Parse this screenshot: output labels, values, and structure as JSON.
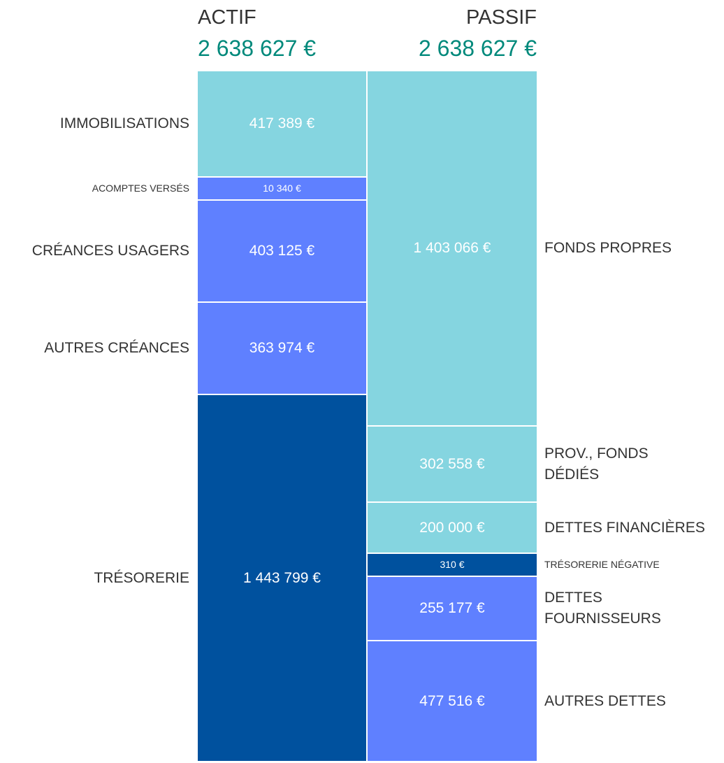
{
  "chart_data": {
    "type": "balance",
    "columns": [
      {
        "name": "ACTIF",
        "total": 2638627,
        "total_label": "2 638 627 €",
        "segments": [
          {
            "name": "IMMOBILISATIONS",
            "value": 417389,
            "value_label": "417 389 €",
            "color": "#85d5e0"
          },
          {
            "name": "ACOMPTES VERSÉS",
            "value": 10340,
            "value_label": "10 340 €",
            "color": "#5f80ff"
          },
          {
            "name": "CRÉANCES USAGERS",
            "value": 403125,
            "value_label": "403 125 €",
            "color": "#5f80ff"
          },
          {
            "name": "AUTRES CRÉANCES",
            "value": 363974,
            "value_label": "363 974 €",
            "color": "#5f80ff"
          },
          {
            "name": "TRÉSORERIE",
            "value": 1443799,
            "value_label": "1 443 799 €",
            "color": "#00519e"
          }
        ]
      },
      {
        "name": "PASSIF",
        "total": 2638627,
        "total_label": "2 638 627 €",
        "segments": [
          {
            "name": "FONDS PROPRES",
            "value": 1403066,
            "value_label": "1 403 066 €",
            "color": "#85d5e0"
          },
          {
            "name": "PROV., FONDS DÉDIÉS",
            "value": 302558,
            "value_label": "302 558 €",
            "color": "#85d5e0"
          },
          {
            "name": "DETTES FINANCIÈRES",
            "value": 200000,
            "value_label": "200 000 €",
            "color": "#85d5e0"
          },
          {
            "name": "TRÉSORERIE NÉGATIVE",
            "value": 310,
            "value_label": "310 €",
            "color": "#00519e"
          },
          {
            "name": "DETTES FOURNISSEURS",
            "value": 255177,
            "value_label": "255 177 €",
            "color": "#5f80ff"
          },
          {
            "name": "AUTRES DETTES",
            "value": 477516,
            "value_label": "477 516 €",
            "color": "#5f80ff"
          }
        ]
      }
    ]
  }
}
